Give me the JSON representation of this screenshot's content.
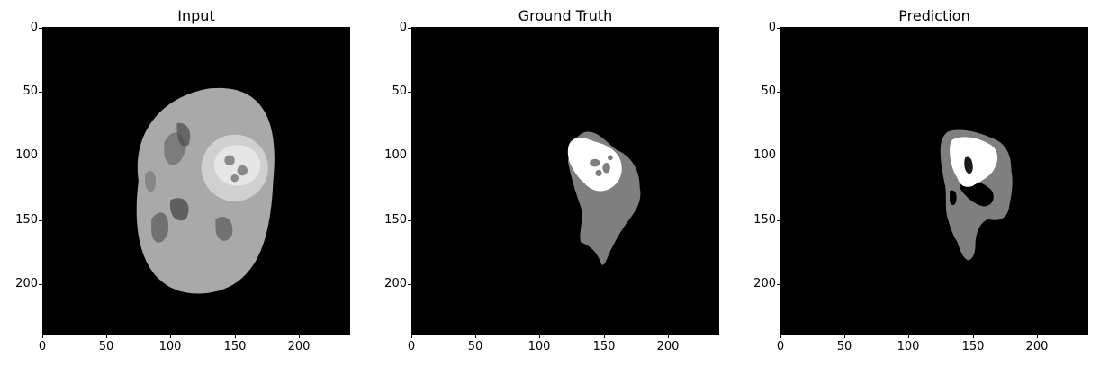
{
  "panels": [
    {
      "title": "Input"
    },
    {
      "title": "Ground Truth"
    },
    {
      "title": "Prediction"
    }
  ],
  "axes": {
    "x_ticks": [
      "0",
      "50",
      "100",
      "150",
      "200"
    ],
    "y_ticks": [
      "0",
      "50",
      "100",
      "150",
      "200"
    ],
    "x_range": [
      0,
      240
    ],
    "y_range": [
      0,
      240
    ]
  },
  "colors": {
    "background": "#000000",
    "tissue": "#a8a8a8",
    "edema": "#7f7f7f",
    "tumor_core": "#ffffff"
  }
}
